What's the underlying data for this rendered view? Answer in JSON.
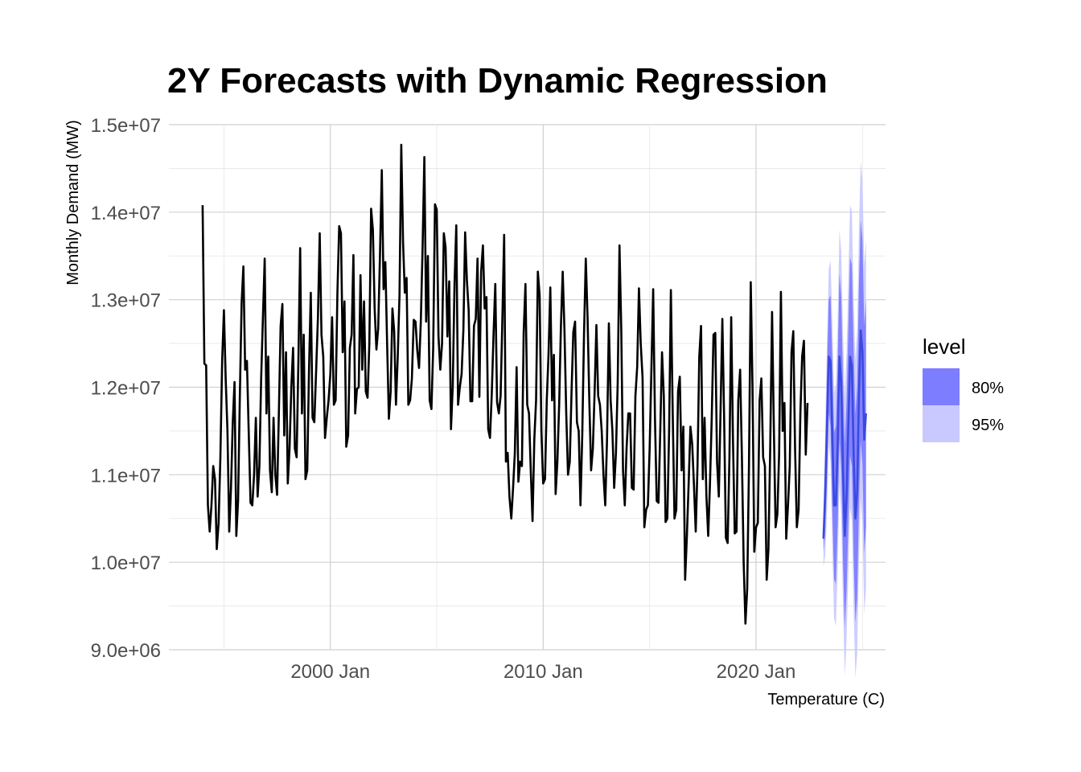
{
  "chart_data": {
    "type": "line",
    "title": "2Y Forecasts with Dynamic Regression",
    "xlabel": "Temperature (C)",
    "ylabel": "Monthly Demand (MW)",
    "x_range": [
      "1992-06",
      "2026-02"
    ],
    "ylim": [
      9000000,
      15000000
    ],
    "y_ticks": [
      {
        "value": 9000000,
        "label": "9.0e+06"
      },
      {
        "value": 10000000,
        "label": "1.0e+07"
      },
      {
        "value": 11000000,
        "label": "1.1e+07"
      },
      {
        "value": 12000000,
        "label": "1.2e+07"
      },
      {
        "value": 13000000,
        "label": "1.3e+07"
      },
      {
        "value": 14000000,
        "label": "1.4e+07"
      },
      {
        "value": 15000000,
        "label": "1.5e+07"
      }
    ],
    "x_ticks": [
      {
        "date": "2000-01",
        "label": "2000 Jan"
      },
      {
        "date": "2010-01",
        "label": "2010 Jan"
      },
      {
        "date": "2020-01",
        "label": "2020 Jan"
      }
    ],
    "x_minor_ticks": [
      "1995-01",
      "2005-01",
      "2015-01",
      "2025-01"
    ],
    "grid": true,
    "legend": {
      "title": "level",
      "placement": "right",
      "entries": [
        {
          "label": "80%",
          "color": "#7d7dff"
        },
        {
          "label": "95%",
          "color": "#c9c9ff"
        }
      ]
    },
    "series": [
      {
        "color": "#000000",
        "start": "1994-01",
        "values": [
          14080000,
          12270000,
          12250000,
          10650000,
          10350000,
          10650000,
          11100000,
          10950000,
          10150000,
          10450000,
          11200000,
          12300000,
          12880000,
          12100000,
          11500000,
          10350000,
          10850000,
          11600000,
          12060000,
          10300000,
          10700000,
          11900000,
          12960000,
          13380000,
          12200000,
          12300000,
          11500000,
          10680000,
          10650000,
          11000000,
          11650000,
          10750000,
          11100000,
          12100000,
          12800000,
          13470000,
          11700000,
          12350000,
          11050000,
          10800000,
          11650000,
          11000000,
          10770000,
          11700000,
          12700000,
          12950000,
          11450000,
          12400000,
          10900000,
          11300000,
          12000000,
          12450000,
          11300000,
          11200000,
          12300000,
          13590000,
          11700000,
          12600000,
          10950000,
          11050000,
          12200000,
          13080000,
          11650000,
          11600000,
          12200000,
          12800000,
          13760000,
          12600000,
          12350000,
          11420000,
          11650000,
          11850000,
          12150000,
          12800000,
          11800000,
          11850000,
          13080000,
          13840000,
          13760000,
          12400000,
          12980000,
          11320000,
          11450000,
          12450000,
          12600000,
          13510000,
          11700000,
          11980000,
          12000000,
          13280000,
          12200000,
          12980000,
          11950000,
          11880000,
          12500000,
          14040000,
          13800000,
          12900000,
          12430000,
          12670000,
          13500000,
          14480000,
          13120000,
          13430000,
          12500000,
          11640000,
          11950000,
          12900000,
          12640000,
          11800000,
          12350000,
          13050000,
          14770000,
          13660000,
          13080000,
          13250000,
          11800000,
          11850000,
          12100000,
          12770000,
          12750000,
          12420000,
          12220000,
          12750000,
          13600000,
          14630000,
          12750000,
          13500000,
          11850000,
          11750000,
          12450000,
          14090000,
          14030000,
          12580000,
          12200000,
          12500000,
          13760000,
          13600000,
          12580000,
          13210000,
          11520000,
          12010000,
          13180000,
          13850000,
          11800000,
          12000000,
          12150000,
          12650000,
          13770000,
          13220000,
          12880000,
          11840000,
          11840000,
          12700000,
          12780000,
          13470000,
          11890000,
          13320000,
          13620000,
          12900000,
          13030000,
          11520000,
          11420000,
          11920000,
          12600000,
          13180000,
          11830000,
          11700000,
          11900000,
          12780000,
          13740000,
          11150000,
          11250000,
          10750000,
          10500000,
          10850000,
          11250000,
          12230000,
          10920000,
          11150000,
          11100000,
          12630000,
          13180000,
          11800000,
          11700000,
          11050000,
          10470000,
          11400000,
          11850000,
          13320000,
          13050000,
          11500000,
          10900000,
          10950000,
          11850000,
          12380000,
          13140000,
          11850000,
          12370000,
          10780000,
          11150000,
          11800000,
          12700000,
          13320000,
          12650000,
          11700000,
          11000000,
          11150000,
          11950000,
          12630000,
          12750000,
          11600000,
          11500000,
          10650000,
          11450000,
          12600000,
          13470000,
          12800000,
          11850000,
          11050000,
          11300000,
          11950000,
          12710000,
          11900000,
          11800000,
          11500000,
          11000000,
          10650000,
          11400000,
          12730000,
          11850000,
          11500000,
          10850000,
          11250000,
          12050000,
          13620000,
          12670000,
          11050000,
          10650000,
          11300000,
          11700000,
          11700000,
          10850000,
          10830000,
          11900000,
          12230000,
          13130000,
          12500000,
          12110000,
          10400000,
          10600000,
          10650000,
          11300000,
          12200000,
          13120000,
          11650000,
          10700000,
          10680000,
          11500000,
          12400000,
          11900000,
          10460000,
          10500000,
          11500000,
          13110000,
          11750000,
          10500000,
          10600000,
          11950000,
          12120000,
          11050000,
          11550000,
          9800000,
          10300000,
          10900000,
          11550000,
          11350000,
          10880000,
          10350000,
          11100000,
          12350000,
          12700000,
          10950000,
          11650000,
          10750000,
          10300000,
          10900000,
          11650000,
          12600000,
          12620000,
          11150000,
          10750000,
          11750000,
          12780000,
          11650000,
          10280000,
          10220000,
          11200000,
          12800000,
          11400000,
          10330000,
          10350000,
          11850000,
          12200000,
          11200000,
          10000000,
          9300000,
          9700000,
          11100000,
          13200000,
          12000000,
          10120000,
          10400000,
          10450000,
          11850000,
          12100000,
          11200000,
          11100000,
          9800000,
          10150000,
          11300000,
          12860000,
          11550000,
          10400000,
          10550000,
          11250000,
          13090000,
          11500000,
          11820000,
          10270000,
          10650000,
          11100000,
          12400000,
          12640000,
          11300000,
          10400000,
          10600000,
          11700000,
          12350000,
          12530000,
          11230000,
          11820000
        ]
      },
      {
        "name": "forecast",
        "color": "#3b49e0",
        "start": "2023-03",
        "values": [
          10270000,
          10800000,
          11550000,
          12350000,
          12300000,
          11450000,
          10650000,
          10650000,
          11350000,
          12350000,
          12050000,
          11050000,
          10300000,
          10750000,
          11550000,
          12350000,
          12250000,
          11250000,
          10500000,
          10800000,
          11900000,
          12650000,
          12400000,
          11400000,
          11700000
        ],
        "lo80": [
          10130000,
          10330000,
          10910000,
          11700000,
          11550000,
          10610000,
          9810000,
          9750000,
          10430000,
          11400000,
          11070000,
          10030000,
          9250000,
          9670000,
          10450000,
          11220000,
          11100000,
          10080000,
          9310000,
          9590000,
          10650000,
          11390000,
          11120000,
          10100000,
          10400000
        ],
        "hi80": [
          10410000,
          11270000,
          12190000,
          13000000,
          13050000,
          12290000,
          11490000,
          11550000,
          12270000,
          13300000,
          13030000,
          12070000,
          11350000,
          11830000,
          12650000,
          13480000,
          13400000,
          12420000,
          11690000,
          12010000,
          13150000,
          13910000,
          13680000,
          12700000,
          13000000
        ],
        "lo95": [
          9950000,
          10080000,
          10560000,
          11350000,
          11150000,
          10160000,
          9360000,
          9270000,
          9940000,
          10900000,
          10550000,
          9480000,
          8700000,
          9100000,
          9870000,
          10620000,
          10490000,
          9460000,
          8680000,
          8950000,
          9990000,
          10720000,
          10440000,
          9410000,
          9710000
        ],
        "hi95": [
          10590000,
          11520000,
          12540000,
          13350000,
          13450000,
          12740000,
          11940000,
          12030000,
          12760000,
          13800000,
          13550000,
          12620000,
          11900000,
          12400000,
          13230000,
          14080000,
          14010000,
          13040000,
          12320000,
          12650000,
          13810000,
          14580000,
          14360000,
          13390000,
          13690000
        ]
      }
    ]
  }
}
